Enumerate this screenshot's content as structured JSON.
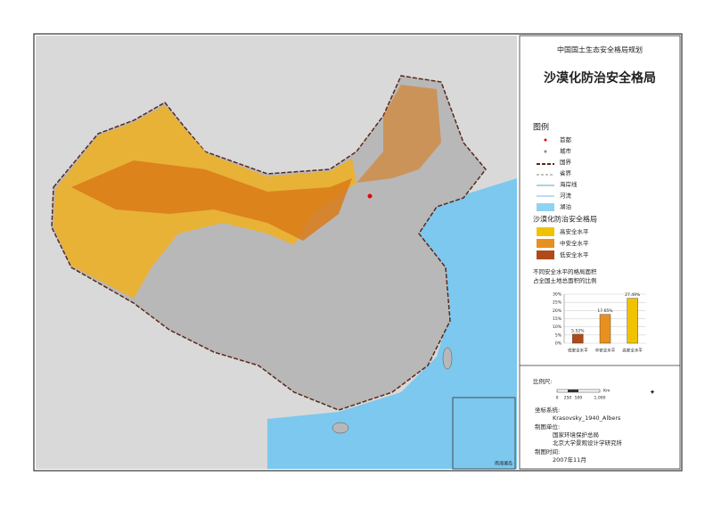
{
  "header": {
    "project": "中国国土生态安全格局规划",
    "title": "沙漠化防治安全格局"
  },
  "legend": {
    "title": "图例",
    "items": [
      "首都",
      "城市",
      "国界",
      "省界",
      "海岸线",
      "河流",
      "湖泊"
    ],
    "section_title": "沙漠化防治安全格局",
    "levels": [
      {
        "label": "高安全水平",
        "color": "#f2c200"
      },
      {
        "label": "中安全水平",
        "color": "#e8901f"
      },
      {
        "label": "低安全水平",
        "color": "#b04a1a"
      }
    ]
  },
  "chart_data": {
    "type": "bar",
    "title": "不同安全水平的格局面积",
    "subtitle": "占全国土地总面积的比例",
    "categories": [
      "低安全水平",
      "中安全水平",
      "高安全水平"
    ],
    "values": [
      5.52,
      17.65,
      27.49
    ],
    "value_labels": [
      "5.52%",
      "17.65%",
      "27.49%"
    ],
    "colors": [
      "#b04a1a",
      "#e8901f",
      "#f2c200"
    ],
    "ylim": [
      0,
      30
    ],
    "yticks": [
      {
        "value": 0,
        "label": "0%"
      },
      {
        "value": 5,
        "label": "5%"
      },
      {
        "value": 10,
        "label": "10%"
      },
      {
        "value": 15,
        "label": "15%"
      },
      {
        "value": 20,
        "label": "20%"
      },
      {
        "value": 25,
        "label": "25%"
      },
      {
        "value": 30,
        "label": "30%"
      }
    ]
  },
  "footer": {
    "scale_title": "比例尺:",
    "scale_ticks": [
      "0",
      "250",
      "500",
      "1,000"
    ],
    "scale_unit": "Km",
    "crs_title": "坐标系统:",
    "crs": "Krasovsky_1940_Albers",
    "org_title": "制图单位:",
    "orgs": [
      "国家环境保护总局",
      "北京大学景观设计学研究所"
    ],
    "date_title": "制图时间:",
    "date": "2007年11月"
  },
  "map": {
    "inset_label": "南海诸岛"
  }
}
